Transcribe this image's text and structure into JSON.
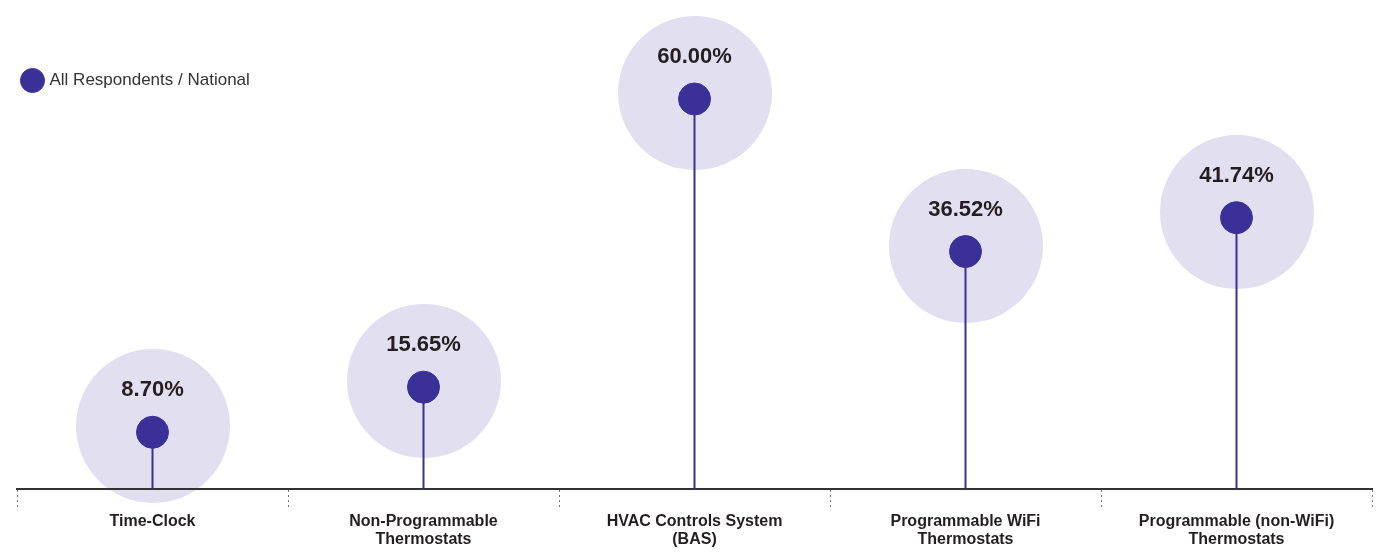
{
  "chart_data": {
    "type": "lollipop",
    "categories": [
      "Time-Clock",
      "Non-Programmable Thermostats",
      "HVAC Controls System (BAS)",
      "Programmable WiFi Thermostats",
      "Programmable (non-WiFi) Thermostats"
    ],
    "series": [
      {
        "name": "All Respondents / National",
        "color": "#3a3098",
        "values": [
          8.7,
          15.65,
          60.0,
          36.52,
          41.74
        ],
        "value_labels": [
          "8.70%",
          "15.65%",
          "60.00%",
          "36.52%",
          "41.74%"
        ]
      }
    ],
    "legend": "top left",
    "marker": "circle",
    "grid": "x"
  }
}
